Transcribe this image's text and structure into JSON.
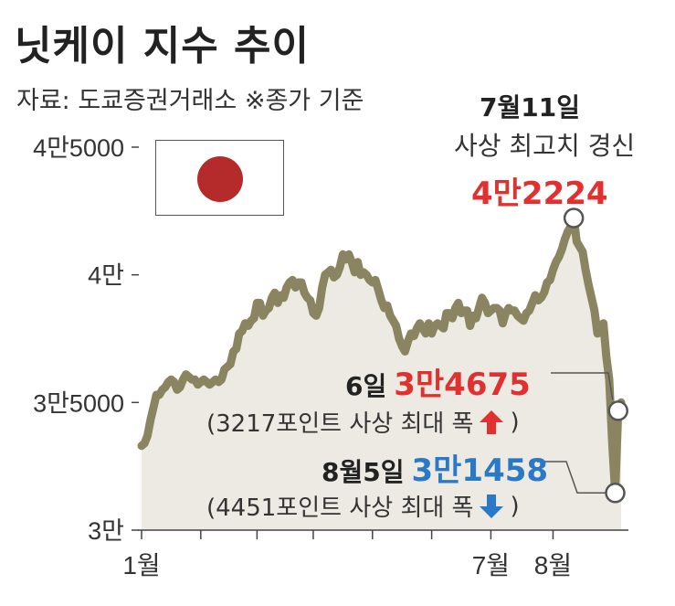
{
  "title": "닛케이 지수 추이",
  "source": "자료: 도쿄증권거래소 ※종가 기준",
  "colors": {
    "line": "#8a8560",
    "red": "#e03030",
    "blue": "#2a78c8",
    "flag_disc": "#b52a2a"
  },
  "icons": {
    "flag": "japan-flag",
    "up": "up-arrow-icon",
    "down": "down-arrow-icon"
  },
  "annotations": {
    "peak": {
      "date": "7월11일",
      "desc": "사상 최고치 경신",
      "value": "4만2224"
    },
    "rise": {
      "label": "6일",
      "value": "3만4675",
      "note_open": "(3217포인트 사상 최대 폭",
      "note_close": ")"
    },
    "fall": {
      "label": "8월5일",
      "value": "3만1458",
      "note_open": "(4451포인트 사상 최대 폭",
      "note_close": ")"
    }
  },
  "chart_data": {
    "type": "line",
    "title": "닛케이 지수 추이",
    "ylim": [
      30000,
      45000
    ],
    "y_ticks": [
      {
        "value": 45000,
        "label": "4만5000"
      },
      {
        "value": 40000,
        "label": "4만"
      },
      {
        "value": 35000,
        "label": "3만5000"
      },
      {
        "value": 30000,
        "label": "3만"
      }
    ],
    "x_ticks": [
      {
        "index": 0,
        "label": "1월"
      },
      {
        "index": 20,
        "label": ""
      },
      {
        "index": 39,
        "label": ""
      },
      {
        "index": 58,
        "label": ""
      },
      {
        "index": 78,
        "label": ""
      },
      {
        "index": 98,
        "label": ""
      },
      {
        "index": 118,
        "label": "7월"
      },
      {
        "index": 139,
        "label": "8월"
      }
    ],
    "series": [
      {
        "values": [
          33300,
          33400,
          33700,
          34300,
          34800,
          35300,
          35300,
          35500,
          35600,
          35800,
          35900,
          35800,
          35500,
          35600,
          35900,
          36100,
          36000,
          35900,
          35900,
          35700,
          35800,
          35900,
          35800,
          35700,
          35800,
          35900,
          35800,
          35900,
          36300,
          36400,
          36500,
          37000,
          37100,
          37700,
          37800,
          38100,
          38000,
          38200,
          38300,
          38900,
          38900,
          38400,
          38600,
          38700,
          39100,
          39300,
          38900,
          39200,
          39100,
          39500,
          39700,
          39800,
          39500,
          39700,
          39700,
          39300,
          39100,
          39000,
          38500,
          38400,
          38700,
          39500,
          40000,
          40100,
          40200,
          39900,
          40000,
          40300,
          40800,
          40600,
          40800,
          40500,
          40100,
          40500,
          40000,
          40100,
          40000,
          39800,
          39700,
          39800,
          39400,
          39000,
          38700,
          38800,
          38400,
          38200,
          38000,
          37500,
          37200,
          37000,
          37400,
          37700,
          37600,
          37900,
          38100,
          37900,
          37700,
          38100,
          37700,
          38000,
          38100,
          38000,
          37900,
          38500,
          38500,
          38300,
          38700,
          38900,
          38500,
          38600,
          38600,
          38000,
          38400,
          38300,
          38700,
          39100,
          38900,
          38500,
          38600,
          38700,
          38700,
          38600,
          38100,
          38500,
          38700,
          38600,
          38600,
          38400,
          38300,
          38200,
          38500,
          38600,
          38900,
          39200,
          39000,
          39100,
          39300,
          39700,
          39800,
          40200,
          40500,
          40700,
          41000,
          41400,
          41700,
          41900,
          42224,
          41300,
          41100,
          40900,
          40200,
          39600,
          39100,
          38600,
          37700,
          37900,
          38100,
          36800,
          35900,
          33400,
          31458,
          34675,
          35000
        ]
      }
    ]
  }
}
